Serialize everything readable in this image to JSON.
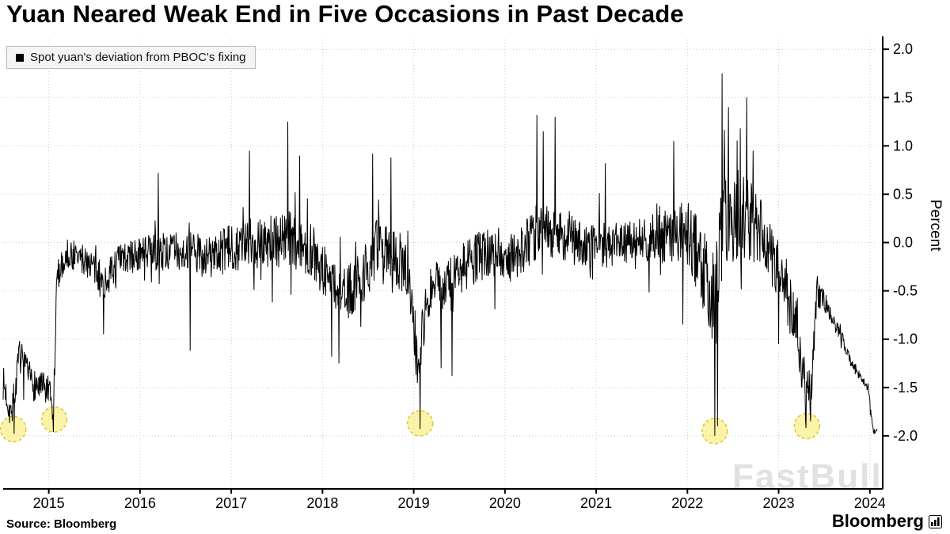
{
  "title": "Yuan Neared Weak End in Five Occasions in Past Decade",
  "legend": {
    "label": "Spot yuan's deviation from PBOC's fixing",
    "swatch_color": "#000000"
  },
  "source": "Source: Bloomberg",
  "brand": "Bloomberg",
  "watermark": "FastBull",
  "chart_data": {
    "type": "line",
    "title": "Yuan Neared Weak End in Five Occasions in Past Decade",
    "series_name": "Spot yuan's deviation from PBOC's fixing",
    "ylabel": "Percent",
    "xlabel": "",
    "grid": true,
    "legend_position": "top-left",
    "line_color": "#000000",
    "highlight_color": "#f5e960",
    "x_range": [
      2014.5,
      2024.08
    ],
    "ylim": [
      -2.5,
      2.1
    ],
    "y_ticks": [
      2.0,
      1.5,
      1.0,
      0.5,
      0.0,
      -0.5,
      -1.0,
      -1.5,
      -2.0
    ],
    "y_tick_labels": [
      "2.0",
      "1.5",
      "1.0",
      "0.5",
      "0.0",
      "-0.5",
      "-1.0",
      "-1.5",
      "-2.0"
    ],
    "x_ticks": [
      2015,
      2016,
      2017,
      2018,
      2019,
      2020,
      2021,
      2022,
      2023,
      2024
    ],
    "x_tick_labels": [
      "2015",
      "2016",
      "2017",
      "2018",
      "2019",
      "2020",
      "2021",
      "2022",
      "2023",
      "2024"
    ],
    "samples_per_year": 200,
    "noise_seed": 7,
    "baseline_points": [
      [
        2014.5,
        -1.45
      ],
      [
        2014.58,
        -1.75
      ],
      [
        2014.62,
        -1.6
      ],
      [
        2014.68,
        -1.15
      ],
      [
        2014.75,
        -1.35
      ],
      [
        2014.82,
        -1.45
      ],
      [
        2014.9,
        -1.5
      ],
      [
        2015.0,
        -1.55
      ],
      [
        2015.05,
        -1.8
      ],
      [
        2015.09,
        -0.35
      ],
      [
        2015.2,
        -0.12
      ],
      [
        2015.45,
        -0.2
      ],
      [
        2015.6,
        -0.45
      ],
      [
        2015.75,
        -0.2
      ],
      [
        2016.0,
        -0.12
      ],
      [
        2016.4,
        -0.08
      ],
      [
        2016.8,
        -0.15
      ],
      [
        2017.0,
        -0.05
      ],
      [
        2017.3,
        0.0
      ],
      [
        2017.6,
        0.05
      ],
      [
        2017.9,
        -0.1
      ],
      [
        2018.05,
        -0.35
      ],
      [
        2018.25,
        -0.55
      ],
      [
        2018.45,
        -0.35
      ],
      [
        2018.6,
        -0.05
      ],
      [
        2018.8,
        -0.15
      ],
      [
        2018.95,
        -0.3
      ],
      [
        2019.04,
        -1.2
      ],
      [
        2019.1,
        -0.9
      ],
      [
        2019.18,
        -0.45
      ],
      [
        2019.35,
        -0.5
      ],
      [
        2019.55,
        -0.25
      ],
      [
        2019.8,
        -0.1
      ],
      [
        2020.1,
        -0.15
      ],
      [
        2020.4,
        0.15
      ],
      [
        2020.6,
        0.1
      ],
      [
        2020.9,
        -0.05
      ],
      [
        2021.3,
        0.0
      ],
      [
        2021.7,
        0.05
      ],
      [
        2021.95,
        0.1
      ],
      [
        2022.1,
        -0.1
      ],
      [
        2022.28,
        -0.55
      ],
      [
        2022.4,
        0.3
      ],
      [
        2022.55,
        0.25
      ],
      [
        2022.75,
        0.15
      ],
      [
        2022.9,
        -0.1
      ],
      [
        2023.05,
        -0.45
      ],
      [
        2023.18,
        -0.8
      ],
      [
        2023.28,
        -1.45
      ],
      [
        2023.36,
        -1.55
      ],
      [
        2023.42,
        -0.5
      ],
      [
        2023.5,
        -0.6
      ],
      [
        2023.6,
        -0.8
      ],
      [
        2023.7,
        -1.0
      ],
      [
        2023.8,
        -1.25
      ],
      [
        2023.9,
        -1.4
      ],
      [
        2023.98,
        -1.5
      ],
      [
        2024.04,
        -1.95
      ]
    ],
    "noise_amplitude_points": [
      [
        2014.5,
        0.18
      ],
      [
        2015.04,
        0.18
      ],
      [
        2015.12,
        0.15
      ],
      [
        2015.5,
        0.18
      ],
      [
        2016.0,
        0.18
      ],
      [
        2016.6,
        0.22
      ],
      [
        2017.0,
        0.25
      ],
      [
        2017.5,
        0.3
      ],
      [
        2017.9,
        0.28
      ],
      [
        2018.3,
        0.28
      ],
      [
        2018.7,
        0.3
      ],
      [
        2019.1,
        0.3
      ],
      [
        2019.5,
        0.28
      ],
      [
        2019.9,
        0.25
      ],
      [
        2020.4,
        0.3
      ],
      [
        2020.9,
        0.25
      ],
      [
        2021.4,
        0.22
      ],
      [
        2021.9,
        0.3
      ],
      [
        2022.2,
        0.45
      ],
      [
        2022.45,
        0.55
      ],
      [
        2022.7,
        0.45
      ],
      [
        2022.95,
        0.3
      ],
      [
        2023.15,
        0.3
      ],
      [
        2023.35,
        0.22
      ],
      [
        2023.45,
        0.15
      ],
      [
        2023.55,
        0.08
      ],
      [
        2023.75,
        0.06
      ],
      [
        2024.0,
        0.05
      ],
      [
        2024.05,
        0.03
      ]
    ],
    "forced_extremes": [
      [
        2014.62,
        -1.98
      ],
      [
        2014.68,
        -1.02
      ],
      [
        2015.05,
        -1.96
      ],
      [
        2015.6,
        -0.95
      ],
      [
        2016.2,
        0.72
      ],
      [
        2016.55,
        -1.12
      ],
      [
        2017.2,
        0.95
      ],
      [
        2017.45,
        -0.62
      ],
      [
        2017.62,
        1.25
      ],
      [
        2017.75,
        0.9
      ],
      [
        2018.1,
        -1.18
      ],
      [
        2018.18,
        -1.25
      ],
      [
        2018.55,
        0.92
      ],
      [
        2018.75,
        0.88
      ],
      [
        2019.07,
        -1.93
      ],
      [
        2019.3,
        -1.3
      ],
      [
        2019.42,
        -1.38
      ],
      [
        2020.35,
        1.32
      ],
      [
        2020.42,
        1.15
      ],
      [
        2020.55,
        1.3
      ],
      [
        2021.1,
        0.82
      ],
      [
        2021.85,
        1.05
      ],
      [
        2021.95,
        -0.85
      ],
      [
        2022.3,
        -2.0
      ],
      [
        2022.33,
        -1.9
      ],
      [
        2022.38,
        1.75
      ],
      [
        2022.45,
        1.4
      ],
      [
        2022.58,
        1.18
      ],
      [
        2022.65,
        1.5
      ],
      [
        2022.72,
        0.95
      ],
      [
        2023.0,
        -1.05
      ],
      [
        2023.3,
        -1.92
      ],
      [
        2023.35,
        -1.85
      ],
      [
        2024.04,
        -1.97
      ]
    ],
    "highlight_circles": [
      {
        "x": 2014.61,
        "y": -1.93
      },
      {
        "x": 2015.06,
        "y": -1.83
      },
      {
        "x": 2019.07,
        "y": -1.87
      },
      {
        "x": 2022.3,
        "y": -1.95
      },
      {
        "x": 2023.31,
        "y": -1.9
      }
    ]
  }
}
